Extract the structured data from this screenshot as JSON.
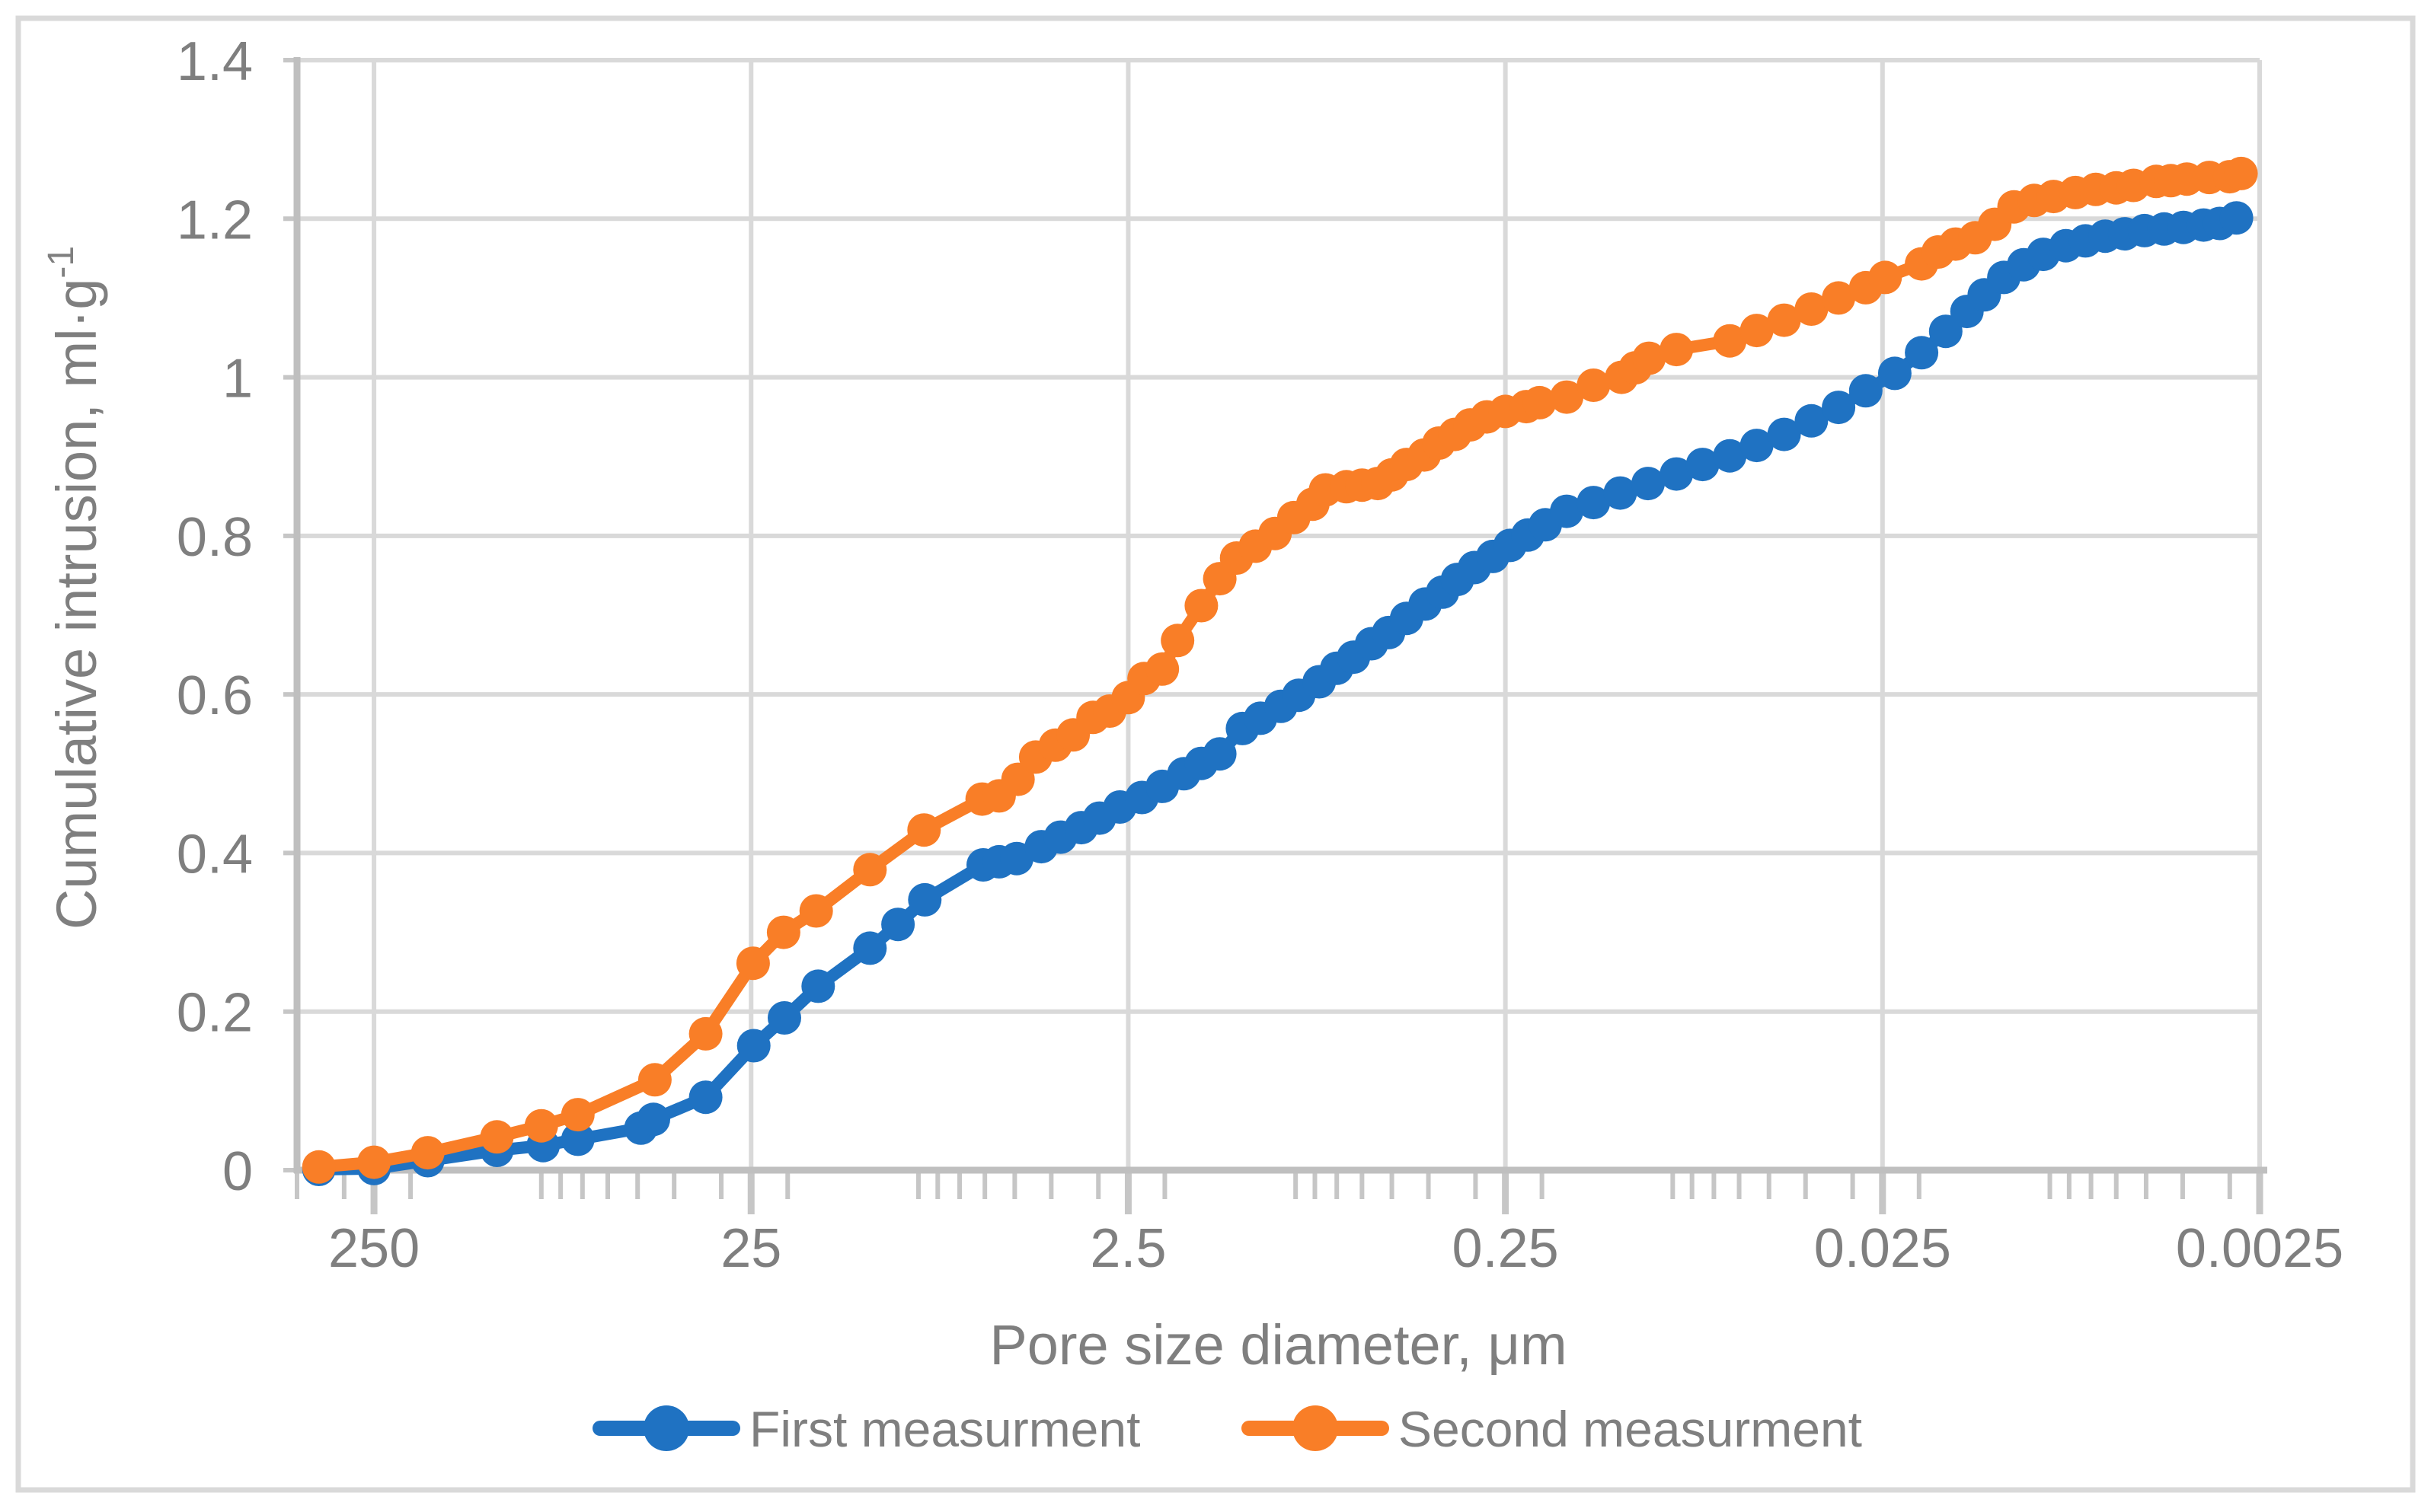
{
  "figure": {
    "background": "#FFFFFF",
    "frame_color": "#D9D9D9"
  },
  "chart_data": {
    "type": "line",
    "title": "",
    "xlabel": "Pore size diameter, μm",
    "ylabel": "Cumulative intrusion, ml·g",
    "ylabel_superscript": "-1",
    "ylabel_full": "Cumulative intrusion, ml·g⁻¹",
    "x_scale": "log10-reversed",
    "x_range": [
      400,
      0.0025
    ],
    "ylim": [
      0,
      1.4
    ],
    "grid": true,
    "legend_position": "bottom-center",
    "colors": {
      "grid": "#D9D9D9",
      "axis": "#BFBFBF",
      "tick": "#C6C6C6",
      "text": "#7F7F7F"
    },
    "x_ticks": [
      {
        "label": "250",
        "value": 250
      },
      {
        "label": "25",
        "value": 25
      },
      {
        "label": "2.5",
        "value": 2.5
      },
      {
        "label": "0.25",
        "value": 0.25
      },
      {
        "label": "0.025",
        "value": 0.025
      },
      {
        "label": "0.0025",
        "value": 0.0025
      }
    ],
    "y_ticks": [
      {
        "label": "0",
        "value": 0
      },
      {
        "label": "0.2",
        "value": 0.2
      },
      {
        "label": "0.4",
        "value": 0.4
      },
      {
        "label": "0.6",
        "value": 0.6
      },
      {
        "label": "0.8",
        "value": 0.8
      },
      {
        "label": "1",
        "value": 1
      },
      {
        "label": "1.2",
        "value": 1.2
      },
      {
        "label": "1.4",
        "value": 1.4
      }
    ],
    "series": [
      {
        "name": "First measurment",
        "color": "#1F72C2",
        "marker": "circle",
        "points": [
          [
            350,
            0.001
          ],
          [
            250,
            0.002
          ],
          [
            180,
            0.012
          ],
          [
            118,
            0.025
          ],
          [
            89,
            0.031
          ],
          [
            72,
            0.039
          ],
          [
            49,
            0.053
          ],
          [
            45.4,
            0.064
          ],
          [
            33,
            0.092
          ],
          [
            24.6,
            0.157
          ],
          [
            20.4,
            0.192
          ],
          [
            16.6,
            0.232
          ],
          [
            12.1,
            0.28
          ],
          [
            10.2,
            0.31
          ],
          [
            8.66,
            0.341
          ],
          [
            6.06,
            0.385
          ],
          [
            5.5,
            0.389
          ],
          [
            4.94,
            0.393
          ],
          [
            4.25,
            0.408
          ],
          [
            3.78,
            0.42
          ],
          [
            3.33,
            0.432
          ],
          [
            2.98,
            0.444
          ],
          [
            2.63,
            0.458
          ],
          [
            2.3,
            0.47
          ],
          [
            2.03,
            0.484
          ],
          [
            1.78,
            0.5
          ],
          [
            1.6,
            0.513
          ],
          [
            1.43,
            0.525
          ],
          [
            1.245,
            0.557
          ],
          [
            1.115,
            0.57
          ],
          [
            0.985,
            0.585
          ],
          [
            0.883,
            0.599
          ],
          [
            0.779,
            0.616
          ],
          [
            0.7,
            0.633
          ],
          [
            0.632,
            0.647
          ],
          [
            0.566,
            0.664
          ],
          [
            0.51,
            0.678
          ],
          [
            0.457,
            0.696
          ],
          [
            0.408,
            0.714
          ],
          [
            0.367,
            0.729
          ],
          [
            0.335,
            0.745
          ],
          [
            0.302,
            0.76
          ],
          [
            0.27,
            0.774
          ],
          [
            0.243,
            0.788
          ],
          [
            0.218,
            0.801
          ],
          [
            0.196,
            0.814
          ],
          [
            0.172,
            0.831
          ],
          [
            0.146,
            0.842
          ],
          [
            0.124,
            0.854
          ],
          [
            0.1046,
            0.866
          ],
          [
            0.088,
            0.878
          ],
          [
            0.075,
            0.89
          ],
          [
            0.0635,
            0.901
          ],
          [
            0.0539,
            0.914
          ],
          [
            0.0456,
            0.928
          ],
          [
            0.0386,
            0.945
          ],
          [
            0.0327,
            0.962
          ],
          [
            0.0277,
            0.983
          ],
          [
            0.0232,
            1.005
          ],
          [
            0.0197,
            1.031
          ],
          [
            0.017,
            1.058
          ],
          [
            0.01493,
            1.083
          ],
          [
            0.01343,
            1.104
          ],
          [
            0.01192,
            1.126
          ],
          [
            0.01056,
            1.142
          ],
          [
            0.00937,
            1.155
          ],
          [
            0.00816,
            1.166
          ],
          [
            0.00724,
            1.172
          ],
          [
            0.00642,
            1.178
          ],
          [
            0.0057,
            1.181
          ],
          [
            0.00505,
            1.185
          ],
          [
            0.00448,
            1.187
          ],
          [
            0.00398,
            1.189
          ],
          [
            0.00352,
            1.192
          ],
          [
            0.00319,
            1.194
          ],
          [
            0.00288,
            1.201
          ]
        ]
      },
      {
        "name": "Second measurment",
        "color": "#F97E27",
        "marker": "circle",
        "points": [
          [
            350,
            0.004
          ],
          [
            250,
            0.01
          ],
          [
            180,
            0.022
          ],
          [
            118,
            0.042
          ],
          [
            90,
            0.056
          ],
          [
            72,
            0.07
          ],
          [
            45,
            0.114
          ],
          [
            33,
            0.172
          ],
          [
            24.7,
            0.261
          ],
          [
            20.5,
            0.3
          ],
          [
            16.8,
            0.327
          ],
          [
            12.1,
            0.379
          ],
          [
            8.7,
            0.429
          ],
          [
            6.1,
            0.468
          ],
          [
            5.5,
            0.472
          ],
          [
            4.9,
            0.493
          ],
          [
            4.4,
            0.521
          ],
          [
            3.9,
            0.536
          ],
          [
            3.5,
            0.549
          ],
          [
            3.1,
            0.571
          ],
          [
            2.8,
            0.579
          ],
          [
            2.5,
            0.596
          ],
          [
            2.27,
            0.62
          ],
          [
            2.03,
            0.632
          ],
          [
            1.85,
            0.668
          ],
          [
            1.6,
            0.712
          ],
          [
            1.43,
            0.746
          ],
          [
            1.29,
            0.772
          ],
          [
            1.15,
            0.787
          ],
          [
            1.02,
            0.803
          ],
          [
            0.91,
            0.823
          ],
          [
            0.81,
            0.84
          ],
          [
            0.75,
            0.858
          ],
          [
            0.66,
            0.862
          ],
          [
            0.6,
            0.864
          ],
          [
            0.545,
            0.866
          ],
          [
            0.5,
            0.877
          ],
          [
            0.457,
            0.89
          ],
          [
            0.41,
            0.902
          ],
          [
            0.375,
            0.917
          ],
          [
            0.34,
            0.928
          ],
          [
            0.31,
            0.94
          ],
          [
            0.28,
            0.95
          ],
          [
            0.25,
            0.957
          ],
          [
            0.22,
            0.963
          ],
          [
            0.203,
            0.968
          ],
          [
            0.172,
            0.975
          ],
          [
            0.146,
            0.99
          ],
          [
            0.123,
            1.0
          ],
          [
            0.113,
            1.012
          ],
          [
            0.104,
            1.024
          ],
          [
            0.088,
            1.035
          ],
          [
            0.0635,
            1.046
          ],
          [
            0.0539,
            1.059
          ],
          [
            0.0456,
            1.072
          ],
          [
            0.0386,
            1.086
          ],
          [
            0.0327,
            1.1
          ],
          [
            0.0277,
            1.113
          ],
          [
            0.0246,
            1.126
          ],
          [
            0.0197,
            1.143
          ],
          [
            0.0178,
            1.158
          ],
          [
            0.016,
            1.168
          ],
          [
            0.0142,
            1.176
          ],
          [
            0.0126,
            1.193
          ],
          [
            0.0112,
            1.215
          ],
          [
            0.0099,
            1.223
          ],
          [
            0.0088,
            1.228
          ],
          [
            0.0077,
            1.233
          ],
          [
            0.0068,
            1.237
          ],
          [
            0.006,
            1.239
          ],
          [
            0.0054,
            1.242
          ],
          [
            0.0047,
            1.247
          ],
          [
            0.0043,
            1.248
          ],
          [
            0.0039,
            1.25
          ],
          [
            0.0034,
            1.252
          ],
          [
            0.003,
            1.253
          ],
          [
            0.0028,
            1.257
          ]
        ]
      }
    ],
    "legend": [
      {
        "label": "First measurment",
        "color": "#1F72C2"
      },
      {
        "label": "Second measurment",
        "color": "#F97E27"
      }
    ]
  }
}
